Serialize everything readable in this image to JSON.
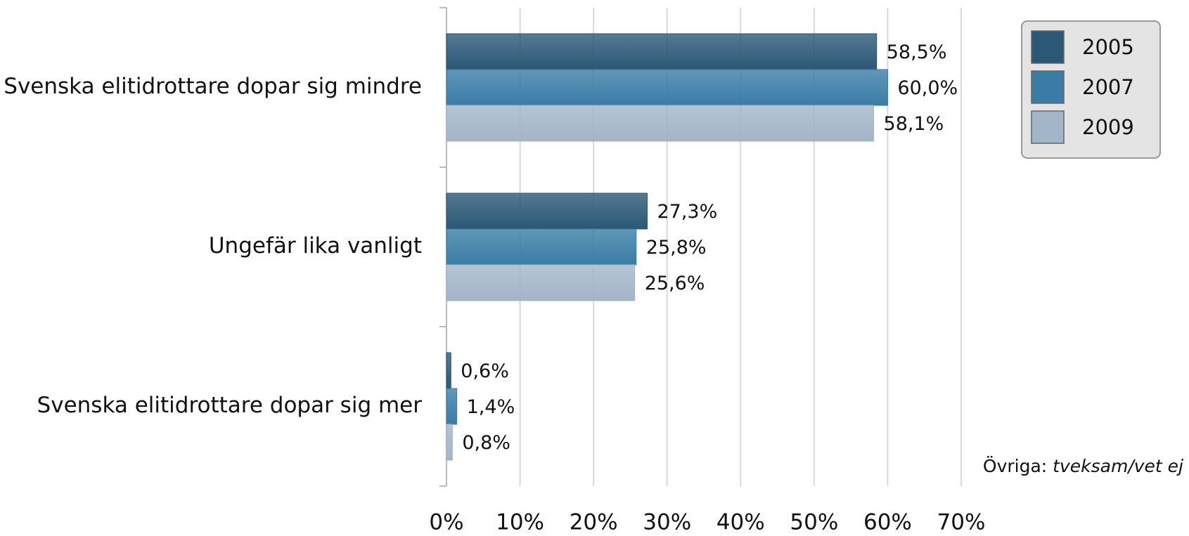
{
  "chart_data": {
    "type": "hbar",
    "categories": [
      "Svenska elitidrottare dopar sig mindre",
      "Ungefär lika vanligt",
      "Svenska elitidrottare dopar sig mer"
    ],
    "series": [
      {
        "name": "2005",
        "color": "#2b5876",
        "values": [
          58.5,
          27.3,
          0.6
        ],
        "value_labels": [
          "58,5%",
          "27,3%",
          "0,6%"
        ]
      },
      {
        "name": "2007",
        "color": "#3a7ca6",
        "values": [
          60.0,
          25.8,
          1.4
        ],
        "value_labels": [
          "60,0%",
          "25,8%",
          "1,4%"
        ]
      },
      {
        "name": "2009",
        "color": "#a3b5c8",
        "values": [
          58.1,
          25.6,
          0.8
        ],
        "value_labels": [
          "58,1%",
          "25,6%",
          "0,8%"
        ]
      }
    ],
    "xlim": [
      0,
      70
    ],
    "xticks": [
      {
        "value": 0,
        "label": "0%"
      },
      {
        "value": 10,
        "label": "10%"
      },
      {
        "value": 20,
        "label": "20%"
      },
      {
        "value": 30,
        "label": "30%"
      },
      {
        "value": 40,
        "label": "40%"
      },
      {
        "value": 50,
        "label": "50%"
      },
      {
        "value": 60,
        "label": "60%"
      },
      {
        "value": 70,
        "label": "70%"
      }
    ],
    "grid": true,
    "legend": "top-right",
    "annotation": {
      "label": "Övriga:",
      "text": "tveksam/vet ej"
    }
  }
}
